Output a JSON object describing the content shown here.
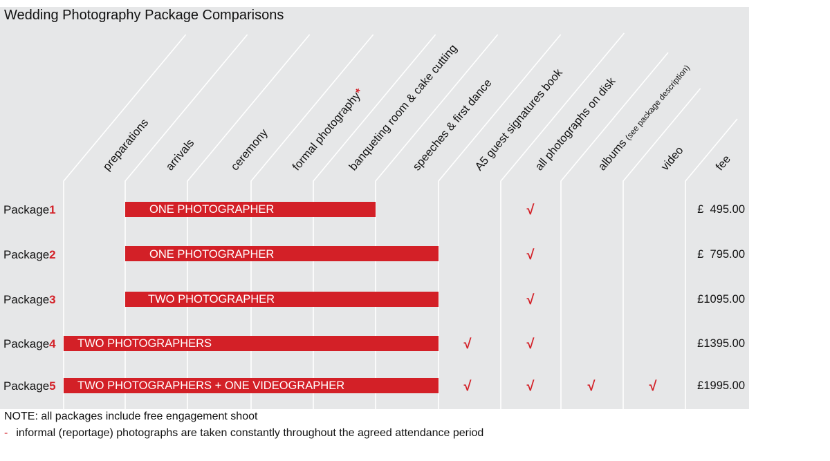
{
  "title": "Wedding Photography Package Comparisons",
  "columns": [
    {
      "label": "preparations"
    },
    {
      "label": "arrivals"
    },
    {
      "label": "ceremony"
    },
    {
      "label": "formal photography",
      "mark": "*"
    },
    {
      "label": "banqueting room & cake cutting"
    },
    {
      "label": "speeches & first dance"
    },
    {
      "label": "A5 guest signatures book"
    },
    {
      "label": "all photographs on disk"
    },
    {
      "label": "albums",
      "note": "(see package description)"
    },
    {
      "label": "video"
    },
    {
      "label": "fee"
    }
  ],
  "packages": [
    {
      "word": "Package",
      "number": "1",
      "bar_text": "ONE PHOTOGRAPHER",
      "tick": "√",
      "fee": "£  495.00"
    },
    {
      "word": "Package",
      "number": "2",
      "bar_text": "ONE PHOTOGRAPHER",
      "tick": "√",
      "fee": "£  795.00"
    },
    {
      "word": "Package",
      "number": "3",
      "bar_text": "TWO PHOTOGRAPHER",
      "tick": "√",
      "fee": "£1095.00"
    },
    {
      "word": "Package",
      "number": "4",
      "bar_text": "TWO PHOTOGRAPHERS",
      "tick": "√",
      "fee": "£1395.00"
    },
    {
      "word": "Package",
      "number": "5",
      "bar_text": "TWO PHOTOGRAPHERS  + ONE VIDEOGRAPHER",
      "tick": "√",
      "fee": "£1995.00"
    }
  ],
  "notes": {
    "line1": "NOTE:  all packages include free engagement shoot",
    "dash": "-",
    "line2": "informal (reportage) photographs are taken constantly throughout the agreed attendance period"
  },
  "colors": {
    "accent": "#d32027",
    "panel": "#e6e7e8",
    "divider": "#ffffff"
  }
}
